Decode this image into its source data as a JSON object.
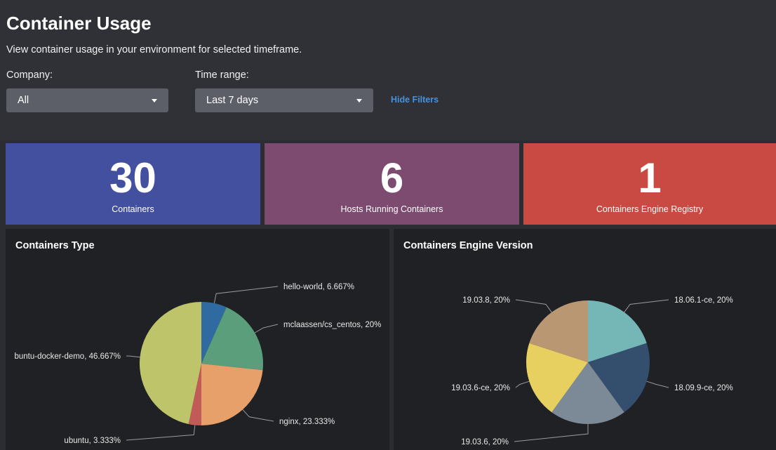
{
  "header": {
    "title": "Container Usage",
    "subtitle": "View container usage in your environment for selected timeframe.",
    "filters": {
      "company_label": "Company:",
      "company_value": "All",
      "time_label": "Time range:",
      "time_value": "Last 7 days",
      "hide_label": "Hide Filters"
    }
  },
  "kpis": [
    {
      "value": "30",
      "label": "Containers",
      "color": "#434f9f"
    },
    {
      "value": "6",
      "label": "Hosts Running Containers",
      "color": "#7d4a70"
    },
    {
      "value": "1",
      "label": "Containers Engine Registry",
      "color": "#c84a42"
    }
  ],
  "panels": {
    "type_title": "Containers Type",
    "version_title": "Containers Engine Version"
  },
  "chart_data": [
    {
      "type": "pie",
      "title": "Containers Type",
      "slices": [
        {
          "label": "hello-world, 6.667%",
          "value": 6.667,
          "color": "#2f6aa0"
        },
        {
          "label": "mclaassen/cs_centos, 20%",
          "value": 20,
          "color": "#5a9e7c"
        },
        {
          "label": "nginx, 23.333%",
          "value": 23.333,
          "color": "#e8a06a"
        },
        {
          "label": "ubuntu, 3.333%",
          "value": 3.333,
          "color": "#c25a58"
        },
        {
          "label": "buntu-docker-demo, 46.667%",
          "value": 46.667,
          "color": "#bec46a"
        }
      ]
    },
    {
      "type": "pie",
      "title": "Containers Engine Version",
      "slices": [
        {
          "label": "18.06.1-ce, 20%",
          "value": 20,
          "color": "#75b6b6"
        },
        {
          "label": "18.09.9-ce, 20%",
          "value": 20,
          "color": "#344e6e"
        },
        {
          "label": "19.03.6, 20%",
          "value": 20,
          "color": "#7c8a98"
        },
        {
          "label": "19.03.6-ce, 20%",
          "value": 20,
          "color": "#e8d060"
        },
        {
          "label": "19.03.8, 20%",
          "value": 20,
          "color": "#b99773"
        }
      ]
    }
  ]
}
